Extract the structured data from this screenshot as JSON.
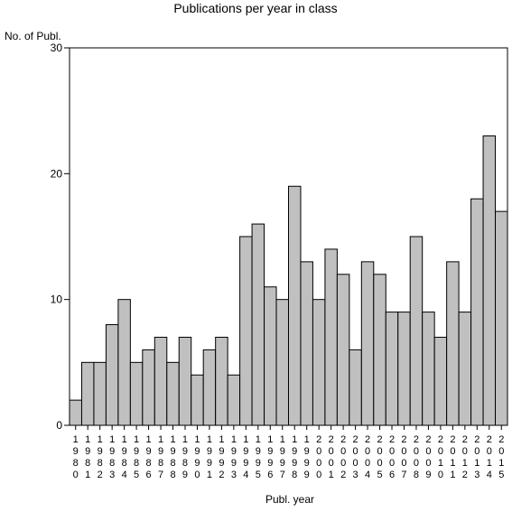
{
  "chart_data": {
    "type": "bar",
    "title": "Publications per year in class",
    "xlabel": "Publ. year",
    "ylabel": "No. of Publ.",
    "ylim": [
      0,
      30
    ],
    "yticks": [
      0,
      10,
      20,
      30
    ],
    "grid": false,
    "categories": [
      "1980",
      "1981",
      "1982",
      "1983",
      "1984",
      "1985",
      "1986",
      "1987",
      "1988",
      "1989",
      "1990",
      "1991",
      "1992",
      "1993",
      "1994",
      "1995",
      "1996",
      "1997",
      "1998",
      "1999",
      "2000",
      "2001",
      "2002",
      "2003",
      "2004",
      "2005",
      "2006",
      "2007",
      "2008",
      "2009",
      "2010",
      "2011",
      "2012",
      "2013",
      "2014",
      "2015"
    ],
    "values": [
      2,
      5,
      5,
      8,
      10,
      5,
      6,
      7,
      5,
      7,
      4,
      6,
      7,
      4,
      15,
      16,
      11,
      10,
      19,
      13,
      10,
      14,
      12,
      6,
      13,
      12,
      9,
      9,
      15,
      9,
      7,
      13,
      9,
      18,
      23,
      17
    ]
  }
}
